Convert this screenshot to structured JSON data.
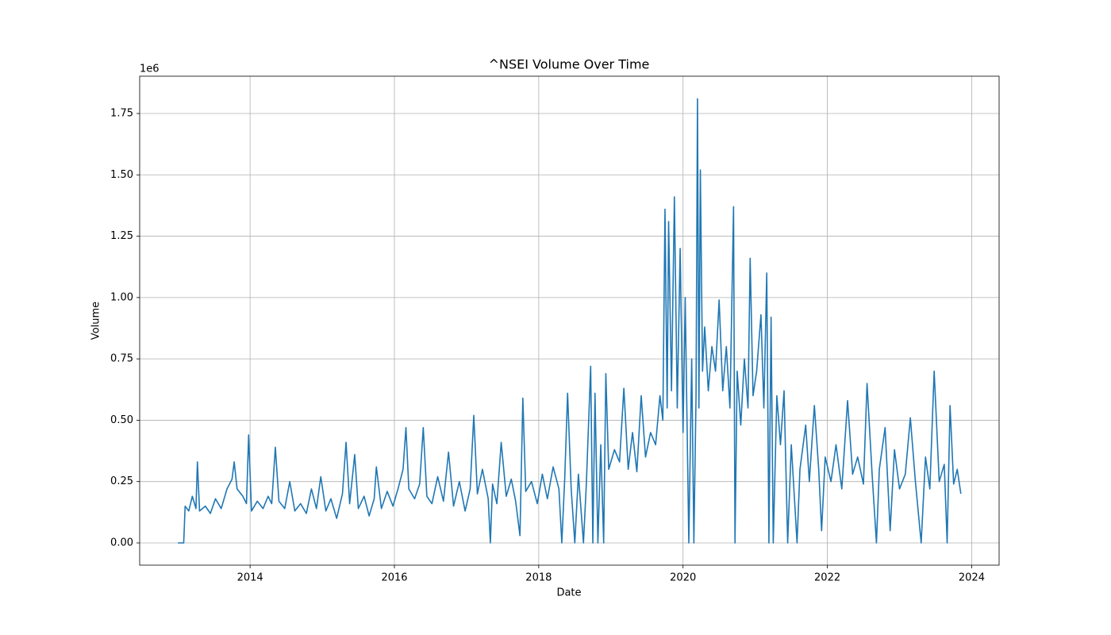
{
  "chart_data": {
    "type": "line",
    "title": "^NSEI Volume Over Time",
    "xlabel": "Date",
    "ylabel": "Volume",
    "y_offset_label": "1e6",
    "x": [
      2013.0,
      2013.08,
      2013.1,
      2013.15,
      2013.2,
      2013.25,
      2013.27,
      2013.3,
      2013.38,
      2013.45,
      2013.52,
      2013.6,
      2013.68,
      2013.75,
      2013.78,
      2013.82,
      2013.9,
      2013.95,
      2013.98,
      2014.02,
      2014.1,
      2014.18,
      2014.25,
      2014.3,
      2014.35,
      2014.4,
      2014.48,
      2014.55,
      2014.62,
      2014.7,
      2014.78,
      2014.85,
      2014.92,
      2014.98,
      2015.05,
      2015.12,
      2015.2,
      2015.28,
      2015.33,
      2015.38,
      2015.45,
      2015.5,
      2015.58,
      2015.65,
      2015.72,
      2015.75,
      2015.82,
      2015.9,
      2015.98,
      2016.05,
      2016.12,
      2016.16,
      2016.2,
      2016.28,
      2016.35,
      2016.4,
      2016.45,
      2016.52,
      2016.6,
      2016.68,
      2016.75,
      2016.82,
      2016.9,
      2016.98,
      2017.05,
      2017.1,
      2017.15,
      2017.22,
      2017.3,
      2017.33,
      2017.36,
      2017.42,
      2017.48,
      2017.55,
      2017.62,
      2017.68,
      2017.74,
      2017.78,
      2017.82,
      2017.9,
      2017.98,
      2018.05,
      2018.12,
      2018.2,
      2018.28,
      2018.32,
      2018.36,
      2018.4,
      2018.45,
      2018.5,
      2018.55,
      2018.62,
      2018.66,
      2018.72,
      2018.75,
      2018.78,
      2018.82,
      2018.86,
      2018.9,
      2018.93,
      2018.97,
      2019.05,
      2019.12,
      2019.18,
      2019.24,
      2019.3,
      2019.36,
      2019.42,
      2019.48,
      2019.55,
      2019.62,
      2019.68,
      2019.72,
      2019.75,
      2019.78,
      2019.8,
      2019.84,
      2019.88,
      2019.92,
      2019.96,
      2020.0,
      2020.03,
      2020.06,
      2020.08,
      2020.12,
      2020.15,
      2020.18,
      2020.2,
      2020.22,
      2020.24,
      2020.27,
      2020.3,
      2020.35,
      2020.4,
      2020.45,
      2020.5,
      2020.55,
      2020.6,
      2020.65,
      2020.7,
      2020.72,
      2020.75,
      2020.8,
      2020.85,
      2020.9,
      2020.93,
      2020.97,
      2021.02,
      2021.08,
      2021.12,
      2021.16,
      2021.19,
      2021.22,
      2021.25,
      2021.3,
      2021.35,
      2021.4,
      2021.45,
      2021.5,
      2021.58,
      2021.62,
      2021.7,
      2021.75,
      2021.82,
      2021.88,
      2021.92,
      2021.97,
      2022.05,
      2022.12,
      2022.2,
      2022.28,
      2022.35,
      2022.42,
      2022.5,
      2022.55,
      2022.62,
      2022.68,
      2022.72,
      2022.8,
      2022.87,
      2022.93,
      2023.0,
      2023.08,
      2023.15,
      2023.22,
      2023.3,
      2023.36,
      2023.42,
      2023.48,
      2023.55,
      2023.62,
      2023.66,
      2023.7,
      2023.75,
      2023.8,
      2023.85
    ],
    "series": [
      {
        "name": "Volume",
        "color": "#1f77b4",
        "values": [
          0.0,
          0.0,
          0.15,
          0.13,
          0.19,
          0.14,
          0.33,
          0.13,
          0.15,
          0.12,
          0.18,
          0.14,
          0.22,
          0.26,
          0.33,
          0.22,
          0.19,
          0.16,
          0.44,
          0.13,
          0.17,
          0.14,
          0.19,
          0.16,
          0.39,
          0.17,
          0.14,
          0.25,
          0.13,
          0.16,
          0.12,
          0.22,
          0.14,
          0.27,
          0.13,
          0.18,
          0.1,
          0.2,
          0.41,
          0.16,
          0.36,
          0.14,
          0.19,
          0.11,
          0.18,
          0.31,
          0.14,
          0.21,
          0.15,
          0.22,
          0.3,
          0.47,
          0.22,
          0.18,
          0.24,
          0.47,
          0.19,
          0.16,
          0.27,
          0.17,
          0.37,
          0.15,
          0.25,
          0.13,
          0.22,
          0.52,
          0.2,
          0.3,
          0.18,
          0.0,
          0.24,
          0.16,
          0.41,
          0.19,
          0.26,
          0.17,
          0.03,
          0.59,
          0.21,
          0.25,
          0.16,
          0.28,
          0.18,
          0.31,
          0.22,
          0.0,
          0.26,
          0.61,
          0.22,
          0.0,
          0.28,
          0.0,
          0.24,
          0.72,
          0.0,
          0.61,
          0.0,
          0.4,
          0.0,
          0.69,
          0.3,
          0.38,
          0.33,
          0.63,
          0.3,
          0.45,
          0.29,
          0.6,
          0.35,
          0.45,
          0.4,
          0.6,
          0.5,
          1.36,
          0.55,
          1.31,
          0.62,
          1.41,
          0.55,
          1.2,
          0.45,
          1.0,
          0.4,
          0.0,
          0.75,
          0.0,
          0.6,
          1.81,
          0.55,
          1.52,
          0.7,
          0.88,
          0.62,
          0.8,
          0.7,
          0.99,
          0.62,
          0.8,
          0.55,
          1.37,
          0.0,
          0.7,
          0.48,
          0.75,
          0.55,
          1.16,
          0.6,
          0.7,
          0.93,
          0.55,
          1.1,
          0.0,
          0.92,
          0.0,
          0.6,
          0.4,
          0.62,
          0.0,
          0.4,
          0.0,
          0.3,
          0.48,
          0.25,
          0.56,
          0.3,
          0.05,
          0.35,
          0.25,
          0.4,
          0.22,
          0.58,
          0.28,
          0.35,
          0.24,
          0.65,
          0.28,
          0.0,
          0.3,
          0.47,
          0.05,
          0.38,
          0.22,
          0.28,
          0.51,
          0.25,
          0.0,
          0.35,
          0.22,
          0.7,
          0.25,
          0.32,
          0.0,
          0.56,
          0.24,
          0.3,
          0.2
        ]
      }
    ],
    "xlim": [
      2012.47,
      2024.38
    ],
    "xticks": [
      2014,
      2016,
      2018,
      2020,
      2022,
      2024
    ],
    "ylim": [
      -0.0906,
      1.902
    ],
    "yticks": [
      {
        "value": 0,
        "label": "0.00"
      },
      0.25,
      {
        "value": 0.5,
        "label": "0.50"
      },
      0.75,
      {
        "value": 1,
        "label": "1.00"
      },
      1.25,
      {
        "value": 1.5,
        "label": "1.50"
      },
      1.75
    ],
    "grid": true
  }
}
